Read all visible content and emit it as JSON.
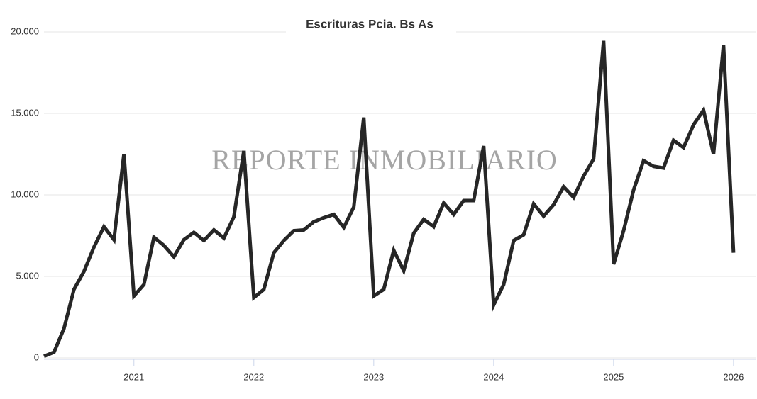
{
  "chart_data": {
    "type": "line",
    "title": "Escrituras Pcia. Bs As",
    "watermark": "REPORTE INMOBILIARIO",
    "x": [
      2020.25,
      2020.3333,
      2020.4167,
      2020.5,
      2020.5833,
      2020.6667,
      2020.75,
      2020.8333,
      2020.9167,
      2021,
      2021.0833,
      2021.1667,
      2021.25,
      2021.3333,
      2021.4167,
      2021.5,
      2021.5833,
      2021.6667,
      2021.75,
      2021.8333,
      2021.9167,
      2022,
      2022.0833,
      2022.1667,
      2022.25,
      2022.3333,
      2022.4167,
      2022.5,
      2022.5833,
      2022.6667,
      2022.75,
      2022.8333,
      2022.9167,
      2023,
      2023.0833,
      2023.1667,
      2023.25,
      2023.3333,
      2023.4167,
      2023.5,
      2023.5833,
      2023.6667,
      2023.75,
      2023.8333,
      2023.9167,
      2024,
      2024.0833,
      2024.1667,
      2024.25,
      2024.3333,
      2024.4167,
      2024.5,
      2024.5833,
      2024.6667,
      2024.75,
      2024.8333,
      2024.9167,
      2025,
      2025.0833,
      2025.1667,
      2025.25,
      2025.3333,
      2025.4167,
      2025.5,
      2025.5833,
      2025.6667,
      2025.75,
      2025.8333,
      2025.9167,
      2026
    ],
    "series": [
      {
        "name": "Escrituras",
        "color": "#262626",
        "values": [
          100,
          350,
          1800,
          4200,
          5300,
          6800,
          8050,
          7250,
          12500,
          3800,
          4500,
          7400,
          6900,
          6200,
          7250,
          7700,
          7200,
          7850,
          7350,
          8650,
          12700,
          3700,
          4200,
          6450,
          7200,
          7800,
          7850,
          8350,
          8600,
          8800,
          8000,
          9250,
          14750,
          3800,
          4200,
          6600,
          5350,
          7650,
          8500,
          8050,
          9500,
          8800,
          9650,
          9650,
          13000,
          3250,
          4500,
          7200,
          7550,
          9450,
          8700,
          9400,
          10500,
          9850,
          11150,
          12200,
          19450,
          5750,
          7800,
          10300,
          12100,
          11750,
          11650,
          13350,
          12900,
          14300,
          15200,
          12500,
          19200,
          6450
        ]
      }
    ],
    "xlim": [
      2020.25,
      2026.19
    ],
    "xticks": [
      2021,
      2022,
      2023,
      2024,
      2025,
      2026
    ],
    "ylim": [
      0,
      20000
    ],
    "yticks": [
      0,
      {
        "value": 5000,
        "label": "5.000"
      },
      {
        "value": 10000,
        "label": "10.000"
      },
      {
        "value": 15000,
        "label": "15.000"
      },
      {
        "value": 20000,
        "label": "20.000"
      }
    ],
    "grid": true
  }
}
